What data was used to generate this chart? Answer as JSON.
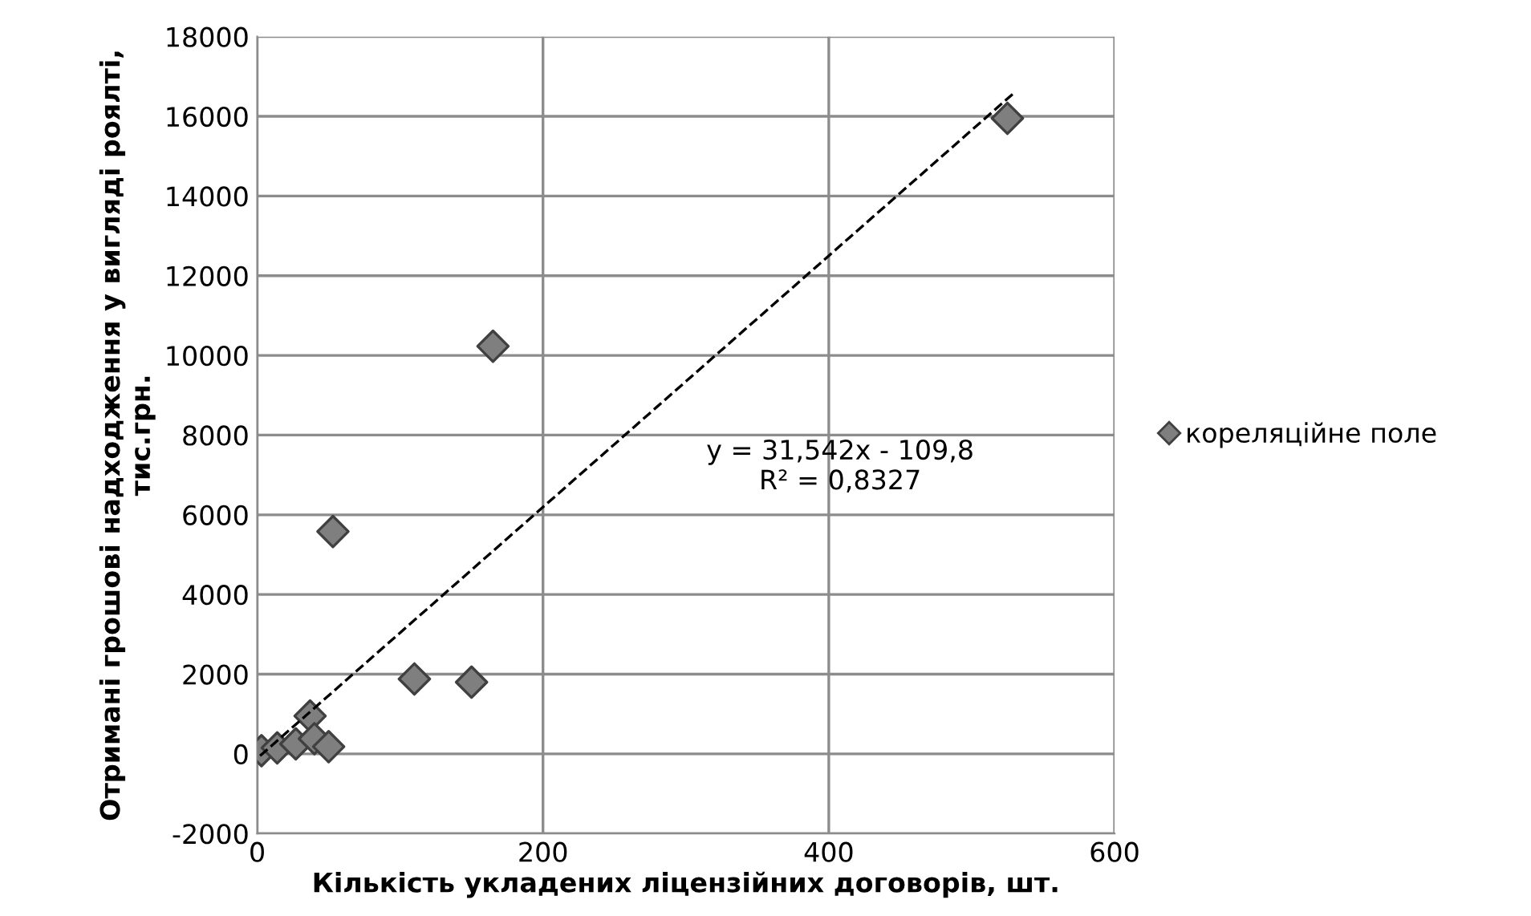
{
  "chart_data": {
    "type": "scatter",
    "xlabel": "Кількість укладених ліцензійних договорів, шт.",
    "ylabel": "Отримані грошові надходження у вигляді роялті, тис.грн.",
    "xlim": [
      0,
      600
    ],
    "xticks": [
      0,
      200,
      400,
      600
    ],
    "ylim": [
      -2000,
      18000
    ],
    "yticks": [
      -2000,
      0,
      2000,
      4000,
      6000,
      8000,
      10000,
      12000,
      14000,
      16000,
      18000
    ],
    "grid": true,
    "legend": "right",
    "marker": "diamond",
    "annotations": [
      "y = 31,542x - 109,8\nR² = 0,8327"
    ],
    "series": [
      {
        "name": "кореляційне поле",
        "type": "scatter",
        "color": "#7f7f7f",
        "x": [
          525,
          165,
          53,
          110,
          150,
          37,
          3,
          14,
          27,
          40,
          50
        ],
        "values": [
          15950,
          10230,
          5580,
          1880,
          1800,
          950,
          80,
          150,
          250,
          380,
          180
        ]
      },
      {
        "type": "line",
        "color": "#000000",
        "line_style": "dashed",
        "marker": "none",
        "x": [
          2,
          530
        ],
        "values": [
          -50,
          16600
        ]
      }
    ]
  }
}
